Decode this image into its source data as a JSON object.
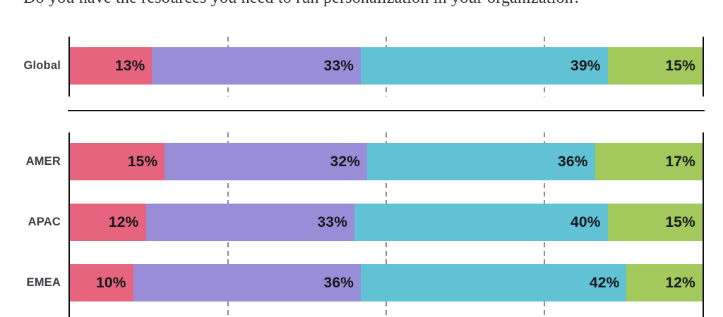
{
  "title": "Do you have the resources you need to run personalization in your organization?",
  "colors": {
    "segments": [
      "#E7647E",
      "#9A8DD8",
      "#62C2D5",
      "#A3C95C"
    ],
    "axis": "#0E0E0E",
    "gridline": "#8E8E8E",
    "row_label": "#3C3C46",
    "value_label": "#17171C"
  },
  "chart_data": {
    "type": "bar",
    "orientation": "horizontal",
    "stacked": true,
    "title": "Do you have the resources you need to run personalization in your organization?",
    "value_suffix": "%",
    "xlim": [
      0,
      100
    ],
    "gridlines_pct": [
      25,
      50,
      75
    ],
    "grid": "dashed-vertical",
    "legend": "none",
    "panels": [
      {
        "id": "global",
        "rows": [
          {
            "label": "Global",
            "values": [
              13,
              33,
              39,
              15
            ]
          }
        ]
      },
      {
        "id": "regions",
        "rows": [
          {
            "label": "AMER",
            "values": [
              15,
              32,
              36,
              17
            ]
          },
          {
            "label": "APAC",
            "values": [
              12,
              33,
              40,
              15
            ]
          },
          {
            "label": "EMEA",
            "values": [
              10,
              36,
              42,
              12
            ]
          }
        ]
      }
    ]
  }
}
